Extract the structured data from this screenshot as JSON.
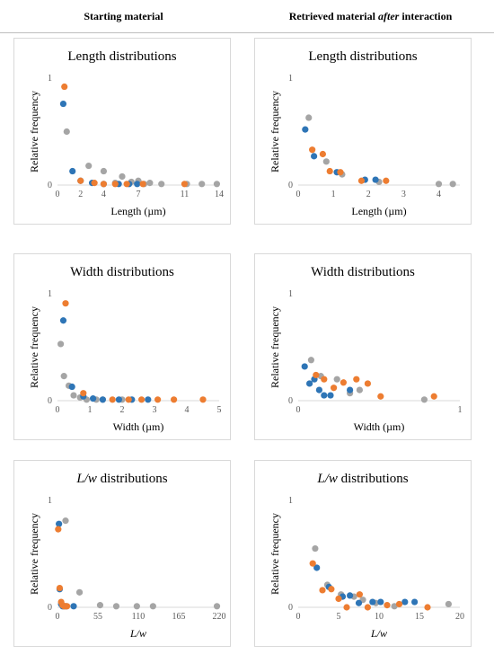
{
  "header": {
    "left": "Starting material",
    "right_pre": "Retrieved material ",
    "right_em": "after",
    "right_post": " interaction"
  },
  "colors": {
    "series1": "#2E75B6",
    "series2": "#ED7D31",
    "series3": "#A5A5A5"
  },
  "chart_data": [
    {
      "type": "scatter",
      "title": "Length distributions",
      "xlabel": "Length (µm)",
      "ylabel": "Relative frequency",
      "xlim": [
        0,
        14
      ],
      "ylim": [
        0,
        1
      ],
      "xticks": [
        0,
        2,
        4,
        7,
        11,
        14
      ],
      "yticks": [
        0,
        1
      ],
      "series": [
        {
          "points": [
            [
              0.5,
              0.76
            ],
            [
              1.3,
              0.13
            ],
            [
              2.0,
              0.04
            ],
            [
              3.0,
              0.02
            ],
            [
              4.0,
              0.01
            ],
            [
              5.3,
              0.01
            ],
            [
              6.2,
              0.01
            ],
            [
              6.9,
              0.01
            ]
          ]
        },
        {
          "points": [
            [
              0.6,
              0.92
            ],
            [
              2.0,
              0.04
            ],
            [
              3.2,
              0.02
            ],
            [
              4.0,
              0.01
            ],
            [
              5.0,
              0.01
            ],
            [
              6.0,
              0.01
            ],
            [
              7.4,
              0.01
            ],
            [
              11.0,
              0.01
            ]
          ]
        },
        {
          "points": [
            [
              0.8,
              0.5
            ],
            [
              2.7,
              0.18
            ],
            [
              4.0,
              0.13
            ],
            [
              5.0,
              0.02
            ],
            [
              5.6,
              0.08
            ],
            [
              6.4,
              0.03
            ],
            [
              7.0,
              0.04
            ],
            [
              7.5,
              0.01
            ],
            [
              8.0,
              0.02
            ],
            [
              9.0,
              0.01
            ],
            [
              11.2,
              0.01
            ],
            [
              12.5,
              0.01
            ],
            [
              13.8,
              0.01
            ]
          ]
        }
      ]
    },
    {
      "type": "scatter",
      "title": "Length distributions",
      "xlabel": "Length (µm)",
      "ylabel": "Relative frequency",
      "xlim": [
        0,
        4.6
      ],
      "ylim": [
        0,
        1
      ],
      "xticks": [
        0,
        1,
        2,
        3,
        4
      ],
      "yticks": [
        0,
        1
      ],
      "series": [
        {
          "points": [
            [
              0.2,
              0.52
            ],
            [
              0.45,
              0.27
            ],
            [
              1.1,
              0.12
            ],
            [
              1.9,
              0.05
            ],
            [
              2.2,
              0.05
            ]
          ]
        },
        {
          "points": [
            [
              0.4,
              0.33
            ],
            [
              0.7,
              0.29
            ],
            [
              0.9,
              0.13
            ],
            [
              1.2,
              0.12
            ],
            [
              1.8,
              0.04
            ],
            [
              2.5,
              0.04
            ]
          ]
        },
        {
          "points": [
            [
              0.3,
              0.63
            ],
            [
              0.8,
              0.22
            ],
            [
              1.25,
              0.1
            ],
            [
              2.3,
              0.03
            ],
            [
              4.0,
              0.01
            ],
            [
              4.4,
              0.01
            ]
          ]
        }
      ]
    },
    {
      "type": "scatter",
      "title": "Width distributions",
      "xlabel": "Width (µm)",
      "ylabel": "Relative frequency",
      "xlim": [
        0,
        5
      ],
      "ylim": [
        0,
        1
      ],
      "xticks": [
        0,
        1,
        2,
        3,
        4,
        5
      ],
      "yticks": [
        0,
        1
      ],
      "series": [
        {
          "points": [
            [
              0.18,
              0.75
            ],
            [
              0.45,
              0.13
            ],
            [
              0.8,
              0.04
            ],
            [
              1.1,
              0.02
            ],
            [
              1.4,
              0.01
            ],
            [
              1.9,
              0.01
            ],
            [
              2.3,
              0.01
            ],
            [
              2.8,
              0.01
            ]
          ]
        },
        {
          "points": [
            [
              0.25,
              0.91
            ],
            [
              0.8,
              0.07
            ],
            [
              1.7,
              0.01
            ],
            [
              2.2,
              0.01
            ],
            [
              2.6,
              0.01
            ],
            [
              3.1,
              0.01
            ],
            [
              3.6,
              0.01
            ],
            [
              4.5,
              0.01
            ]
          ]
        },
        {
          "points": [
            [
              0.1,
              0.53
            ],
            [
              0.2,
              0.23
            ],
            [
              0.35,
              0.14
            ],
            [
              0.5,
              0.05
            ],
            [
              0.7,
              0.03
            ],
            [
              0.9,
              0.01
            ],
            [
              1.2,
              0.01
            ],
            [
              1.4,
              0.01
            ],
            [
              2.0,
              0.01
            ]
          ]
        }
      ]
    },
    {
      "type": "scatter",
      "title": "Width distributions",
      "xlabel": "Width (µm)",
      "ylabel": "Relative frequency",
      "xlim": [
        0,
        1
      ],
      "ylim": [
        0,
        1
      ],
      "xticks": [
        0,
        1
      ],
      "yticks": [
        0,
        1
      ],
      "series": [
        {
          "points": [
            [
              0.04,
              0.32
            ],
            [
              0.07,
              0.16
            ],
            [
              0.1,
              0.2
            ],
            [
              0.13,
              0.1
            ],
            [
              0.16,
              0.05
            ],
            [
              0.2,
              0.05
            ],
            [
              0.32,
              0.1
            ]
          ]
        },
        {
          "points": [
            [
              0.11,
              0.24
            ],
            [
              0.16,
              0.2
            ],
            [
              0.22,
              0.12
            ],
            [
              0.28,
              0.17
            ],
            [
              0.36,
              0.2
            ],
            [
              0.43,
              0.16
            ],
            [
              0.51,
              0.04
            ],
            [
              0.84,
              0.04
            ]
          ]
        },
        {
          "points": [
            [
              0.08,
              0.38
            ],
            [
              0.14,
              0.23
            ],
            [
              0.24,
              0.2
            ],
            [
              0.32,
              0.07
            ],
            [
              0.38,
              0.1
            ],
            [
              0.78,
              0.01
            ]
          ]
        }
      ]
    },
    {
      "type": "scatter",
      "title_em": "L/w",
      "title_rest": " distributions",
      "xlabel_em": "L/w",
      "ylabel": "Relative frequency",
      "xlim": [
        0,
        220
      ],
      "ylim": [
        0,
        1
      ],
      "xticks": [
        0,
        55,
        110,
        165,
        220
      ],
      "yticks": [
        0,
        1
      ],
      "series": [
        {
          "points": [
            [
              2,
              0.78
            ],
            [
              3,
              0.17
            ],
            [
              5,
              0.03
            ],
            [
              7,
              0.01
            ],
            [
              9,
              0.01
            ],
            [
              12,
              0.01
            ],
            [
              22,
              0.01
            ]
          ]
        },
        {
          "points": [
            [
              1,
              0.73
            ],
            [
              3,
              0.18
            ],
            [
              5,
              0.05
            ],
            [
              7,
              0.02
            ],
            [
              9,
              0.01
            ],
            [
              11,
              0.01
            ],
            [
              13,
              0.01
            ]
          ]
        },
        {
          "points": [
            [
              11,
              0.81
            ],
            [
              30,
              0.14
            ],
            [
              58,
              0.02
            ],
            [
              80,
              0.01
            ],
            [
              108,
              0.01
            ],
            [
              130,
              0.01
            ],
            [
              217,
              0.01
            ]
          ]
        }
      ]
    },
    {
      "type": "scatter",
      "title_em": "L/w",
      "title_rest": " distributions",
      "xlabel_em": "L/w",
      "ylabel": "Relative frequency",
      "xlim": [
        0,
        20
      ],
      "ylim": [
        0,
        1
      ],
      "xticks": [
        0,
        5,
        10,
        15,
        20
      ],
      "yticks": [
        0,
        1
      ],
      "series": [
        {
          "points": [
            [
              2.3,
              0.37
            ],
            [
              3.8,
              0.19
            ],
            [
              5.5,
              0.1
            ],
            [
              6.4,
              0.11
            ],
            [
              7.5,
              0.04
            ],
            [
              9.2,
              0.05
            ],
            [
              10.2,
              0.05
            ],
            [
              13.2,
              0.05
            ],
            [
              14.4,
              0.05
            ]
          ]
        },
        {
          "points": [
            [
              1.8,
              0.41
            ],
            [
              3.0,
              0.16
            ],
            [
              4.1,
              0.17
            ],
            [
              5.0,
              0.08
            ],
            [
              6.0,
              0.0
            ],
            [
              7.6,
              0.12
            ],
            [
              8.6,
              0.0
            ],
            [
              11.0,
              0.02
            ],
            [
              12.5,
              0.03
            ],
            [
              16.0,
              0.0
            ]
          ]
        },
        {
          "points": [
            [
              2.1,
              0.55
            ],
            [
              3.6,
              0.21
            ],
            [
              5.3,
              0.12
            ],
            [
              6.9,
              0.1
            ],
            [
              8.0,
              0.07
            ],
            [
              9.6,
              0.04
            ],
            [
              11.9,
              0.01
            ],
            [
              18.6,
              0.03
            ]
          ]
        }
      ]
    }
  ]
}
